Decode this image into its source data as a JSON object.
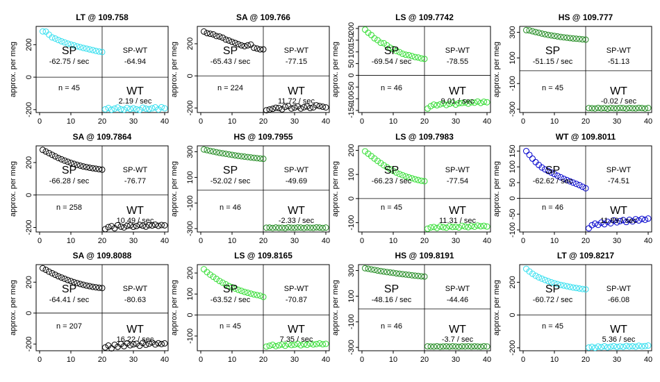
{
  "figure": {
    "ylabel": "approx. per meg",
    "x_ticks": [
      0,
      10,
      20,
      30,
      40
    ],
    "sp_label": "SP",
    "wt_label": "WT",
    "diff_label": "SP-WT"
  },
  "colors": {
    "LT": "#33dfef",
    "SA": "#000000",
    "LS": "#33dd33",
    "HS": "#228b22",
    "WT": "#0000cc"
  },
  "chart_data": [
    {
      "type": "scatter",
      "title": "LT @ 109.758",
      "code": "LT",
      "ylim": [
        -205,
        300
      ],
      "y_ticks": [
        -200,
        0,
        200
      ],
      "sp_rate": "-62.75 / sec",
      "diff": "-64.94",
      "wt_rate": "2.19 / sec",
      "n": "n = 45",
      "sp_y": [
        282,
        281,
        262,
        245,
        238,
        229,
        221,
        214,
        207,
        201,
        196,
        190,
        185,
        180,
        176,
        171,
        167,
        162,
        158,
        155
      ],
      "wt_y": [
        -198,
        -190,
        -200,
        -194,
        -187,
        -198,
        -200,
        -189,
        -196,
        -192,
        -198,
        -201,
        -188,
        -194,
        -197,
        -192,
        -186,
        -199,
        -185,
        -192
      ]
    },
    {
      "type": "scatter",
      "title": "SA @ 109.766",
      "code": "SA",
      "ylim": [
        -215,
        295
      ],
      "y_ticks": [
        -200,
        0,
        200
      ],
      "sp_y": [
        276,
        266,
        262,
        258,
        248,
        245,
        238,
        226,
        220,
        212,
        205,
        197,
        190,
        185,
        190,
        195,
        175,
        170,
        165,
        165
      ],
      "wt_y": [
        -214,
        -209,
        -205,
        -198,
        -200,
        -208,
        -193,
        -188,
        -203,
        -197,
        -190,
        -203,
        -195,
        -190,
        -200,
        -196,
        -183,
        -188,
        -192,
        -196
      ],
      "sp_rate": "-65.43 / sec",
      "diff": "-77.15",
      "wt_rate": "11.72 / sec",
      "n": "n = 224"
    },
    {
      "type": "scatter",
      "title": "LS @ 109.7742",
      "code": "LS",
      "ylim": [
        -150,
        200
      ],
      "y_ticks": [
        -150,
        -100,
        -50,
        0,
        50,
        100,
        150,
        200
      ],
      "sp_y": [
        195,
        182,
        172,
        158,
        150,
        139,
        137,
        128,
        118,
        112,
        104,
        99,
        92,
        88,
        86,
        82,
        78,
        76,
        72,
        70
      ],
      "wt_y": [
        -142,
        -132,
        -125,
        -128,
        -124,
        -120,
        -127,
        -122,
        -117,
        -125,
        -119,
        -118,
        -116,
        -121,
        -115,
        -117,
        -112,
        -118,
        -113,
        -115
      ],
      "sp_rate": "-69.54 / sec",
      "diff": "-78.55",
      "wt_rate": "9.01 / sec",
      "n": "n = 46"
    },
    {
      "type": "scatter",
      "title": "HS @ 109.777",
      "code": "HS",
      "ylim": [
        -310,
        330
      ],
      "y_ticks": [
        -300,
        -100,
        100,
        300
      ],
      "sp_y": [
        317,
        315,
        308,
        302,
        297,
        290,
        285,
        280,
        276,
        272,
        268,
        264,
        261,
        258,
        255,
        252,
        250,
        248,
        245,
        243
      ],
      "wt_y": [
        -292,
        -293,
        -295,
        -290,
        -294,
        -292,
        -296,
        -291,
        -293,
        -294,
        -290,
        -292,
        -295,
        -291,
        -293,
        -294,
        -290,
        -292,
        -295,
        -291
      ],
      "sp_rate": "-51.15 / sec",
      "diff": "-51.13",
      "wt_rate": "-0.02 / sec",
      "n": "n = 45"
    },
    {
      "type": "scatter",
      "title": "SA @ 109.7864",
      "code": "SA",
      "ylim": [
        -215,
        290
      ],
      "y_ticks": [
        -200,
        0,
        200
      ],
      "sp_y": [
        278,
        268,
        258,
        248,
        238,
        228,
        220,
        212,
        205,
        198,
        192,
        186,
        181,
        176,
        172,
        168,
        165,
        162,
        159,
        156
      ],
      "wt_y": [
        -210,
        -198,
        -192,
        -205,
        -186,
        -195,
        -200,
        -190,
        -187,
        -196,
        -191,
        -184,
        -189,
        -195,
        -186,
        -188,
        -183,
        -190,
        -185,
        -187
      ],
      "sp_rate": "-66.28 / sec",
      "diff": "-76.77",
      "wt_rate": "10.49 / sec",
      "n": "n = 258"
    },
    {
      "type": "scatter",
      "title": "HS @ 109.7955",
      "code": "HS",
      "ylim": [
        -310,
        330
      ],
      "y_ticks": [
        -300,
        -100,
        100,
        300
      ],
      "sp_y": [
        318,
        313,
        307,
        302,
        297,
        292,
        288,
        284,
        280,
        276,
        272,
        268,
        265,
        262,
        259,
        256,
        253,
        250,
        247,
        245
      ],
      "wt_y": [
        -293,
        -292,
        -295,
        -291,
        -294,
        -293,
        -296,
        -290,
        -293,
        -294,
        -291,
        -292,
        -295,
        -291,
        -293,
        -294,
        -290,
        -292,
        -295,
        -292
      ],
      "sp_rate": "-52.02 / sec",
      "diff": "-49.69",
      "wt_rate": "-2.33 / sec",
      "n": "n = 46"
    },
    {
      "type": "scatter",
      "title": "LS @ 109.7983",
      "code": "LS",
      "ylim": [
        -130,
        210
      ],
      "y_ticks": [
        -100,
        0,
        100,
        200
      ],
      "sp_y": [
        196,
        186,
        176,
        166,
        156,
        147,
        138,
        130,
        122,
        115,
        108,
        102,
        97,
        92,
        88,
        84,
        80,
        77,
        74,
        72
      ],
      "wt_y": [
        -125,
        -120,
        -118,
        -122,
        -116,
        -119,
        -121,
        -115,
        -118,
        -117,
        -120,
        -113,
        -116,
        -119,
        -114,
        -117,
        -112,
        -115,
        -113,
        -116
      ],
      "sp_rate": "-66.23 / sec",
      "diff": "-77.54",
      "wt_rate": "11.31 / sec",
      "n": "n = 45"
    },
    {
      "type": "scatter",
      "title": "WT @ 109.8011",
      "code": "WT",
      "ylim": [
        -100,
        160
      ],
      "y_ticks": [
        -100,
        -50,
        0,
        50,
        100,
        150
      ],
      "sp_y": [
        150,
        138,
        126,
        115,
        106,
        98,
        92,
        87,
        82,
        77,
        72,
        67,
        62,
        58,
        54,
        50,
        46,
        42,
        37,
        32
      ],
      "wt_y": [
        -95,
        -85,
        -80,
        -84,
        -77,
        -82,
        -74,
        -79,
        -70,
        -76,
        -72,
        -69,
        -75,
        -68,
        -73,
        -66,
        -70,
        -65,
        -68,
        -64
      ],
      "sp_rate": "-62.62 / sec",
      "diff": "-74.51",
      "wt_rate": "11.89 / sec",
      "n": "n = 46"
    },
    {
      "type": "scatter",
      "title": "SA @ 109.8088",
      "code": "SA",
      "ylim": [
        -230,
        300
      ],
      "y_ticks": [
        -200,
        0,
        200
      ],
      "sp_y": [
        290,
        280,
        268,
        258,
        248,
        238,
        230,
        222,
        214,
        207,
        200,
        194,
        188,
        183,
        178,
        174,
        170,
        167,
        164,
        162
      ],
      "wt_y": [
        -222,
        -210,
        -228,
        -205,
        -218,
        -200,
        -214,
        -195,
        -208,
        -202,
        -198,
        -211,
        -193,
        -205,
        -198,
        -190,
        -203,
        -195,
        -200,
        -196
      ],
      "sp_rate": "-64.41 / sec",
      "diff": "-80.63",
      "wt_rate": "16.22 / sec",
      "n": "n = 207"
    },
    {
      "type": "scatter",
      "title": "LS @ 109.8165",
      "code": "LS",
      "ylim": [
        -160,
        230
      ],
      "y_ticks": [
        -100,
        0,
        100,
        200
      ],
      "sp_y": [
        218,
        204,
        192,
        182,
        172,
        162,
        154,
        146,
        138,
        132,
        126,
        120,
        115,
        110,
        106,
        102,
        98,
        95,
        92,
        86
      ],
      "wt_y": [
        -150,
        -146,
        -142,
        -148,
        -144,
        -140,
        -146,
        -138,
        -143,
        -141,
        -137,
        -144,
        -139,
        -142,
        -136,
        -140,
        -138,
        -135,
        -139,
        -137
      ],
      "sp_rate": "-63.52 / sec",
      "diff": "-70.87",
      "wt_rate": "7.35 / sec",
      "n": "n = 45"
    },
    {
      "type": "scatter",
      "title": "HS @ 109.8191",
      "code": "HS",
      "ylim": [
        -310,
        330
      ],
      "y_ticks": [
        -300,
        -100,
        100,
        300
      ],
      "sp_y": [
        318,
        314,
        309,
        305,
        300,
        296,
        292,
        288,
        285,
        282,
        278,
        275,
        272,
        269,
        266,
        263,
        260,
        258,
        255,
        253
      ],
      "wt_y": [
        -292,
        -293,
        -294,
        -291,
        -295,
        -293,
        -292,
        -294,
        -291,
        -293,
        -295,
        -292,
        -293,
        -291,
        -294,
        -292,
        -293,
        -295,
        -291,
        -293
      ],
      "sp_rate": "-48.16 / sec",
      "diff": "-44.46",
      "wt_rate": "-3.7 / sec",
      "n": "n = 46"
    },
    {
      "type": "scatter",
      "title": "LT @ 109.8217",
      "code": "LT",
      "ylim": [
        -205,
        295
      ],
      "y_ticks": [
        -200,
        0,
        200
      ],
      "sp_y": [
        282,
        266,
        252,
        240,
        230,
        222,
        214,
        207,
        200,
        194,
        189,
        184,
        180,
        176,
        172,
        168,
        165,
        162,
        159,
        157
      ],
      "wt_y": [
        -198,
        -194,
        -200,
        -192,
        -196,
        -190,
        -197,
        -193,
        -189,
        -195,
        -191,
        -194,
        -188,
        -192,
        -190,
        -193,
        -187,
        -191,
        -189,
        -186
      ],
      "sp_rate": "-60.72 / sec",
      "diff": "-66.08",
      "wt_rate": "5.36 / sec",
      "n": "n = 45"
    }
  ]
}
